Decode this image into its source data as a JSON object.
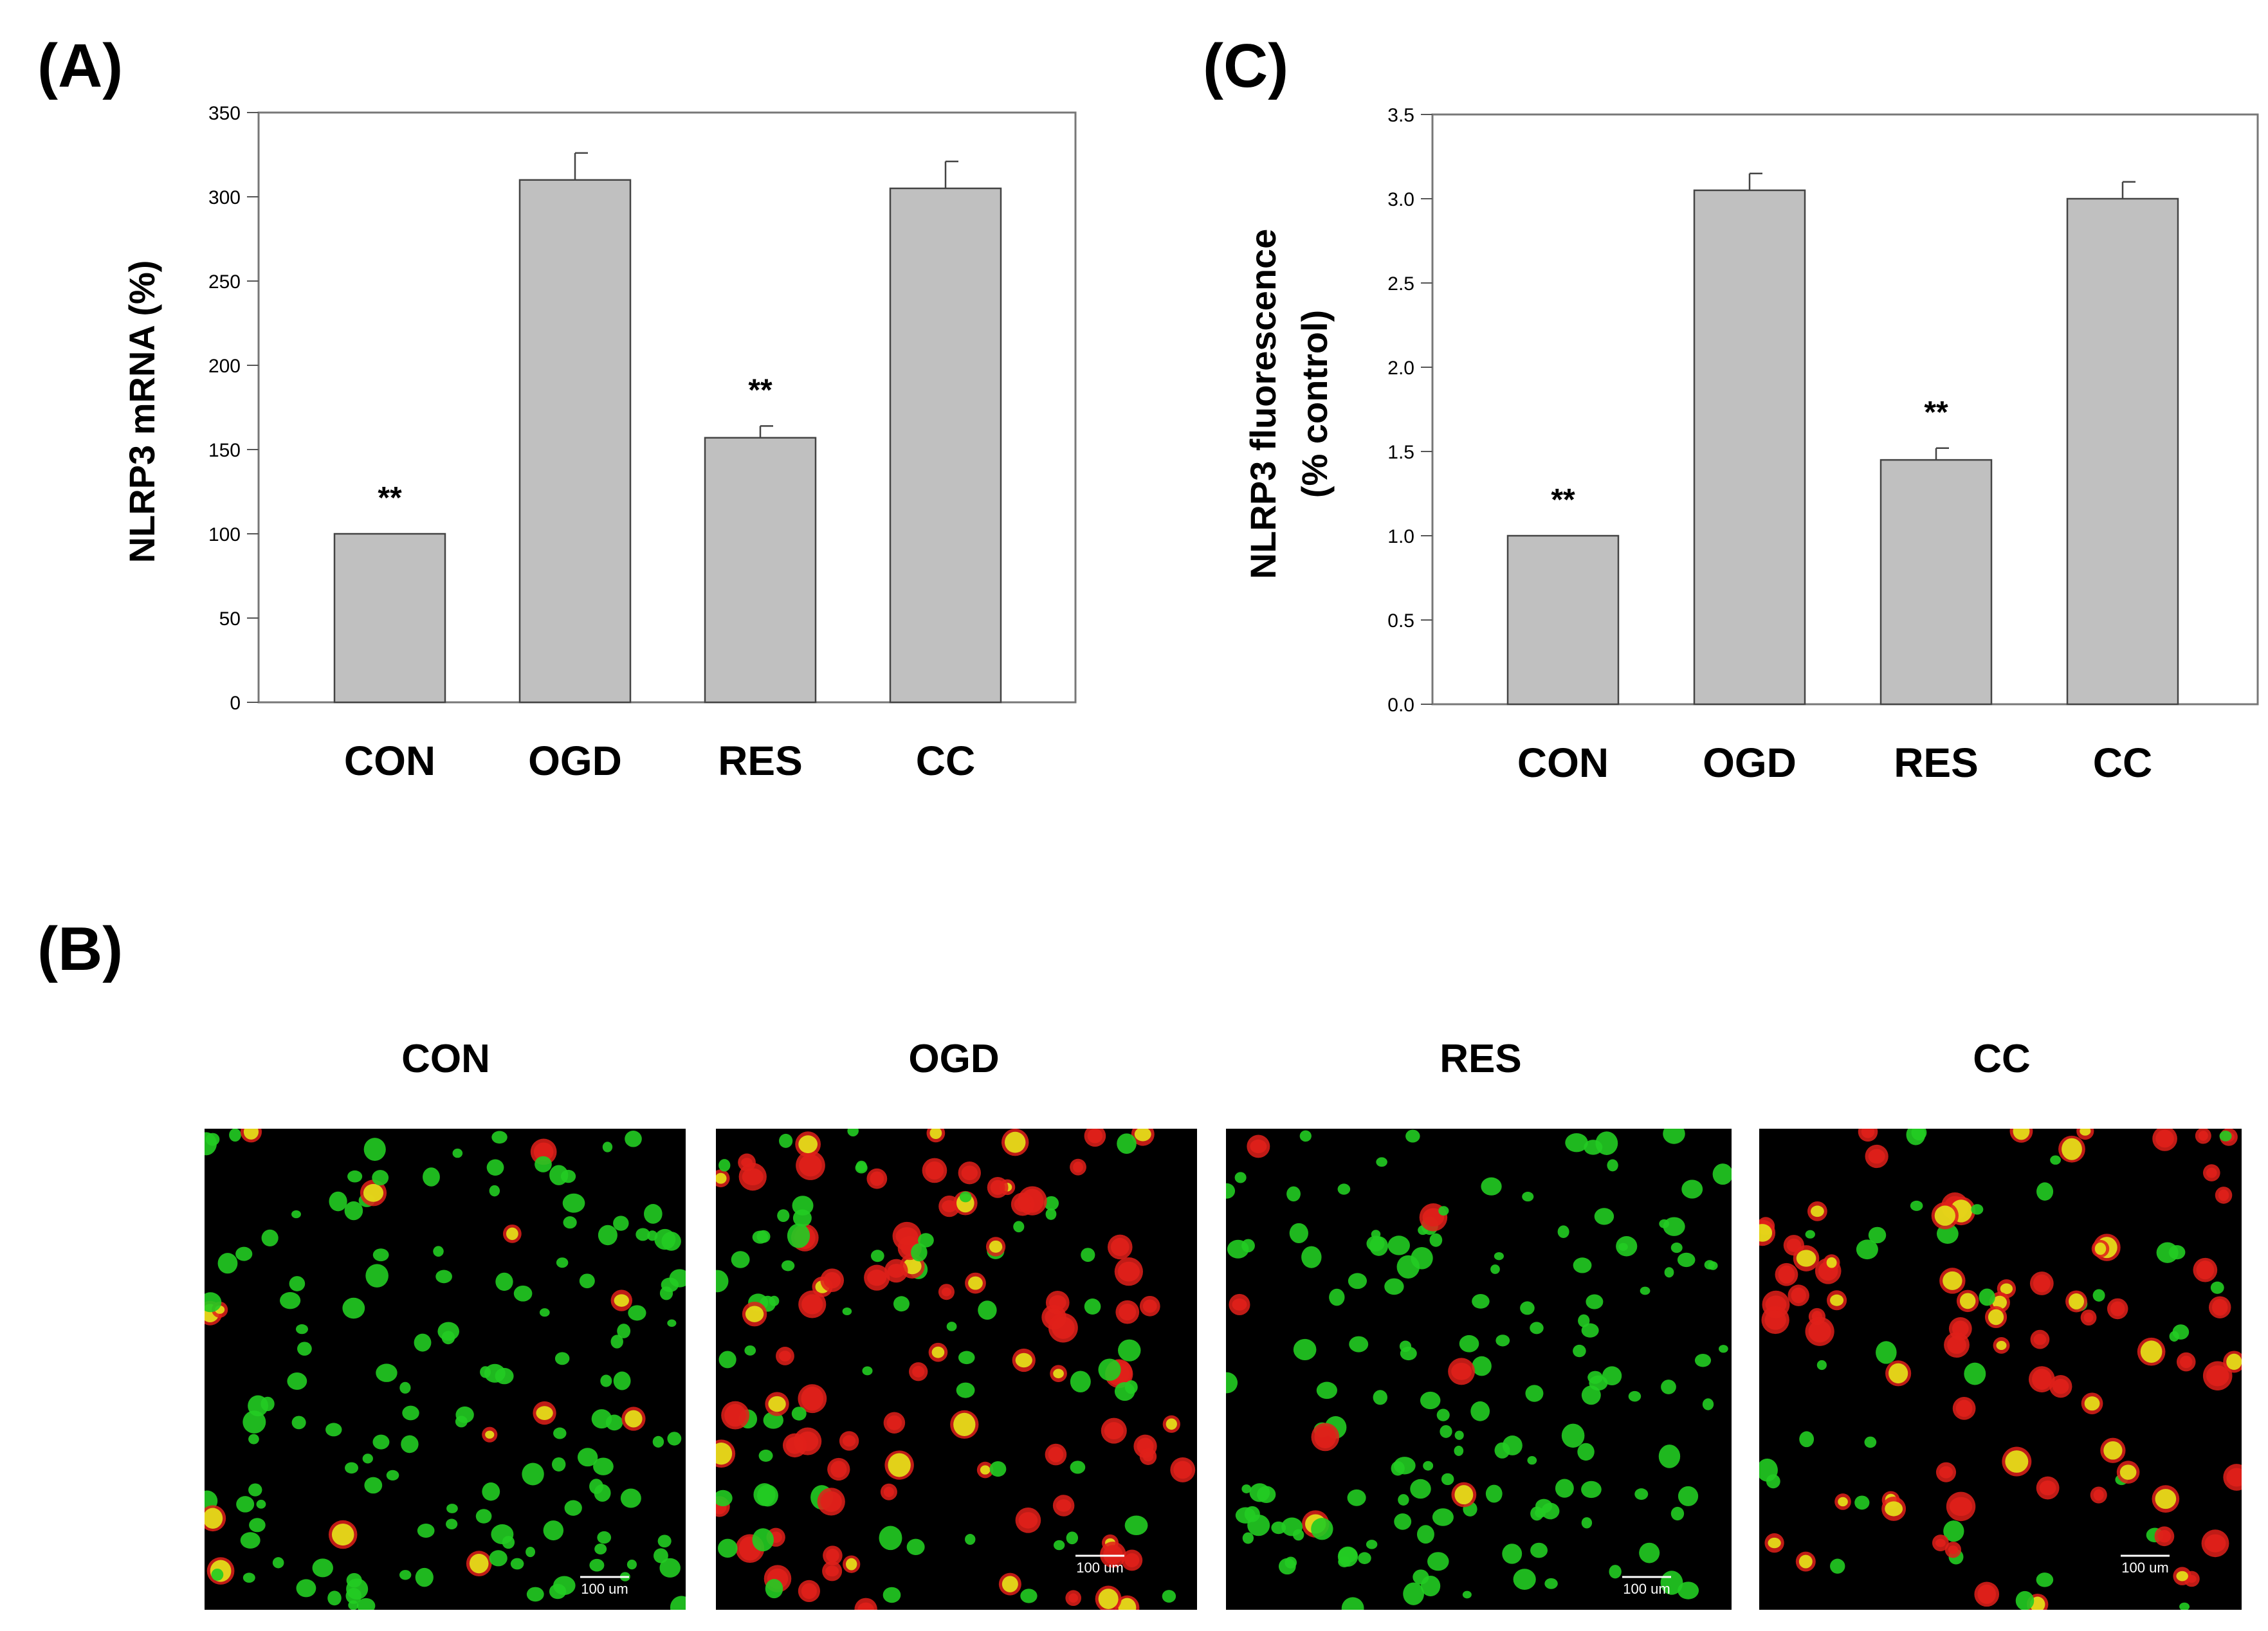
{
  "panels": {
    "a_label": "(A)",
    "b_label": "(B)",
    "c_label": "(C)"
  },
  "chart_data": [
    {
      "id": "A",
      "type": "bar",
      "categories": [
        "CON",
        "OGD",
        "RES",
        "CC"
      ],
      "values": [
        100,
        310,
        157,
        305
      ],
      "errors": [
        0,
        16,
        7,
        16
      ],
      "significance": [
        "**",
        "",
        "**",
        ""
      ],
      "ylabel": "NLRP3 mRNA (%)",
      "ylim": [
        0,
        350
      ],
      "yticks": [
        0,
        50,
        100,
        150,
        200,
        250,
        300,
        350
      ],
      "tick_labels": [
        "0",
        "50",
        "100",
        "150",
        "200",
        "250",
        "300",
        "350"
      ],
      "bar_color": "#c0c0c0",
      "grid": false,
      "legend": "none"
    },
    {
      "id": "C",
      "type": "bar",
      "categories": [
        "CON",
        "OGD",
        "RES",
        "CC"
      ],
      "values": [
        1.0,
        3.05,
        1.45,
        3.0
      ],
      "errors": [
        0,
        0.1,
        0.07,
        0.1
      ],
      "significance": [
        "**",
        "",
        "**",
        ""
      ],
      "ylabel_lines": [
        "NLRP3 fluorescence",
        "(% control)"
      ],
      "ylim": [
        0,
        3.5
      ],
      "yticks": [
        0,
        0.5,
        1.0,
        1.5,
        2.0,
        2.5,
        3.0,
        3.5
      ],
      "tick_labels": [
        "0.0",
        "0.5",
        "1.0",
        "1.5",
        "2.0",
        "2.5",
        "3.0",
        "3.5"
      ],
      "bar_color": "#c0c0c0",
      "grid": false,
      "legend": "none"
    }
  ],
  "micrographs": {
    "titles": [
      "CON",
      "OGD",
      "RES",
      "CC"
    ],
    "scale_bar_label": "100 um",
    "colors": {
      "background": "#000000",
      "green": "#22cc22",
      "red": "#e0201a",
      "yellow": "#e6e619"
    }
  }
}
